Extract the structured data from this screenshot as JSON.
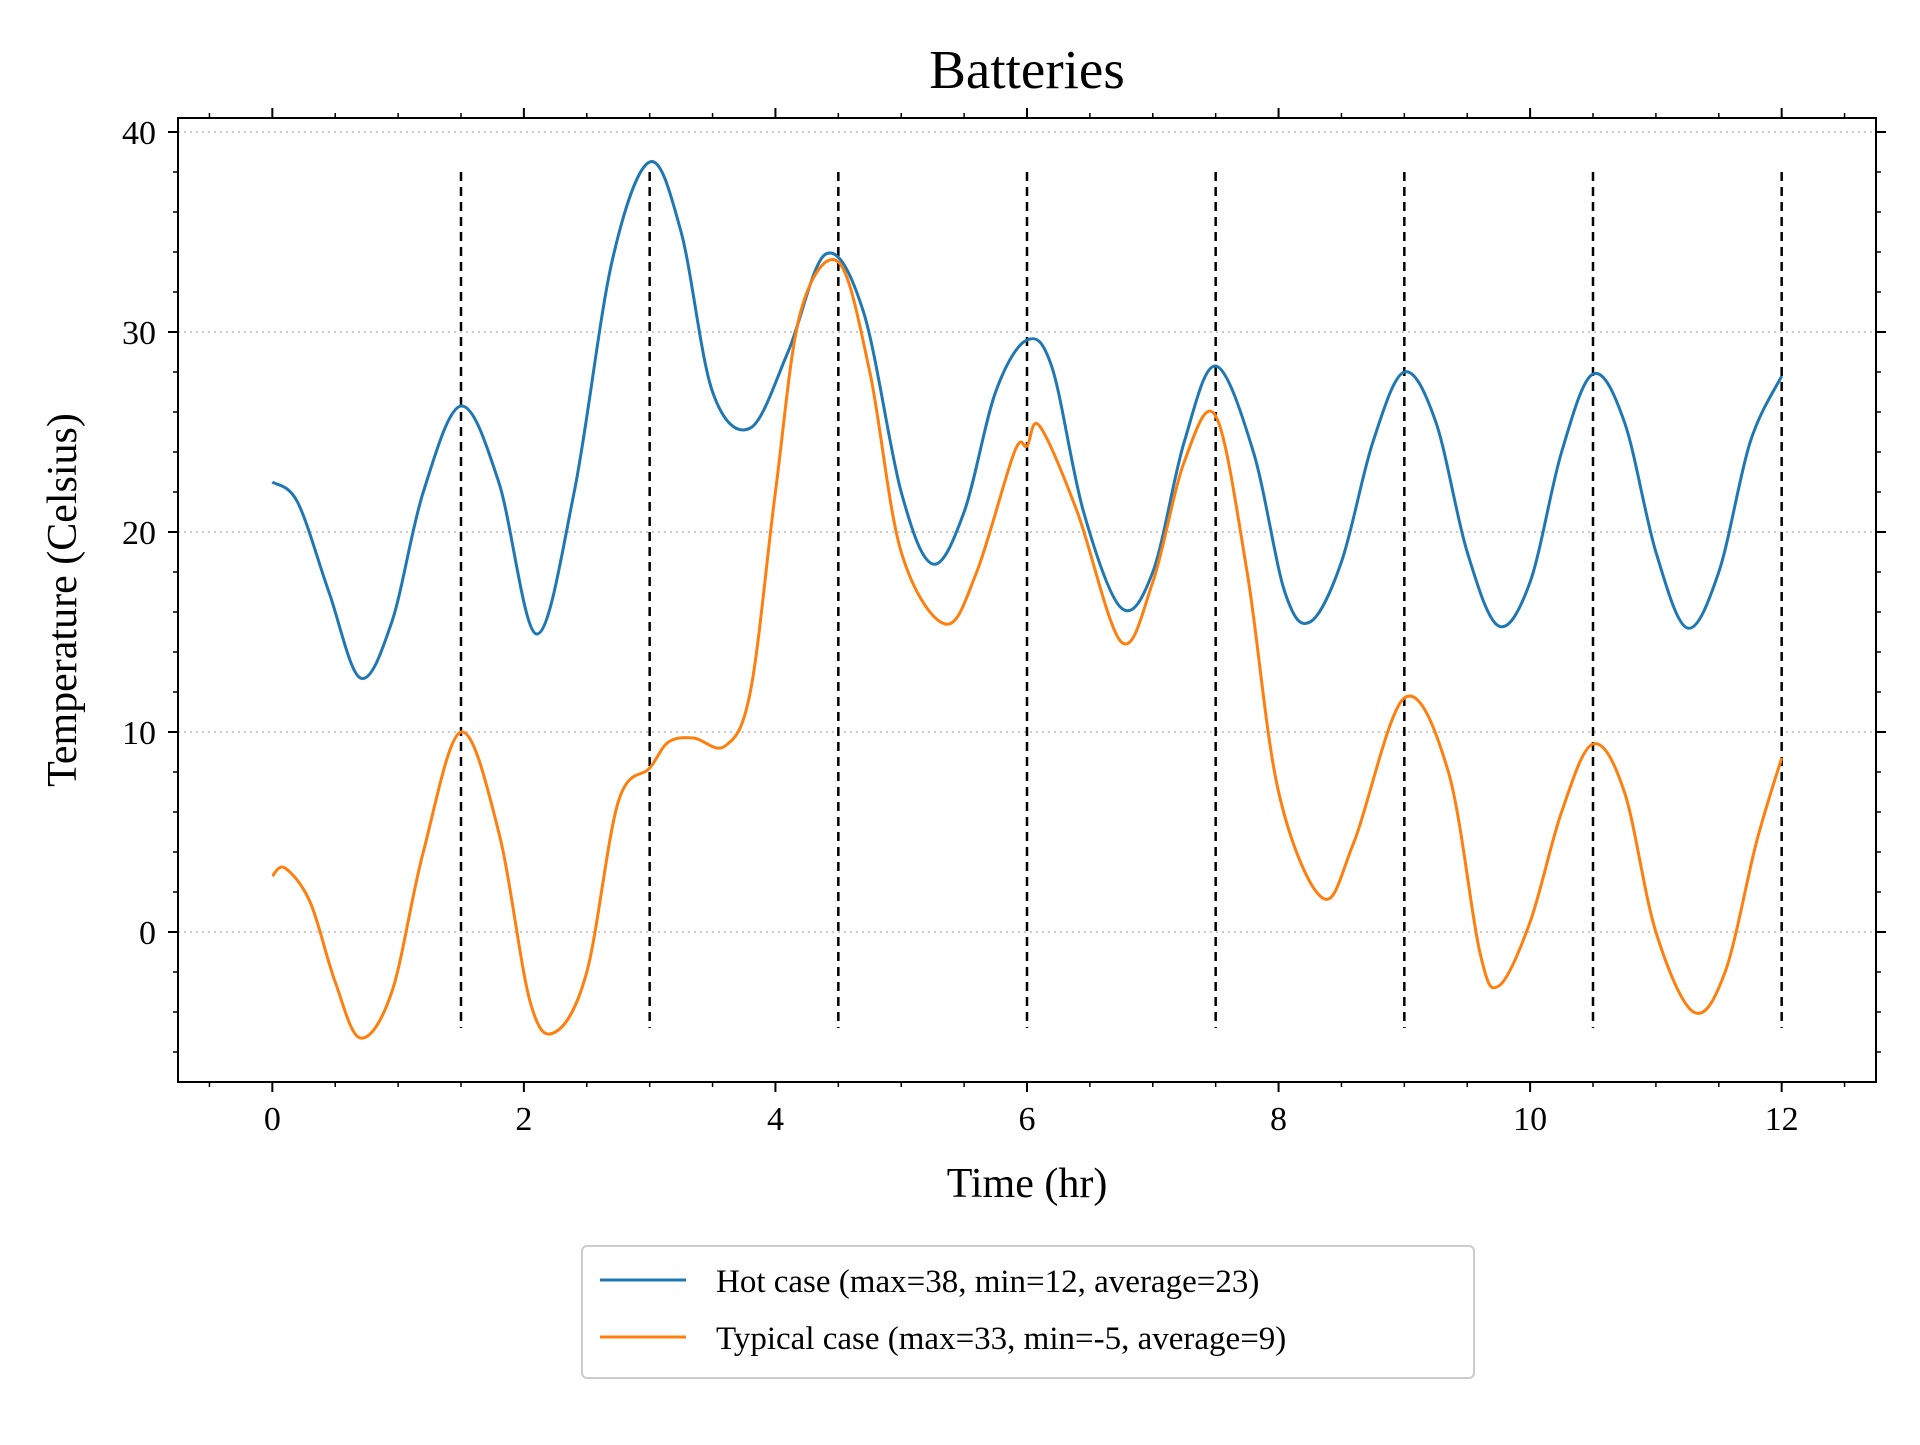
{
  "chart_data": {
    "type": "line",
    "title": "Batteries",
    "xlabel": "Time (hr)",
    "ylabel": "Temperature (Celsius)",
    "xlim": [
      -0.75,
      12.75
    ],
    "ylim": [
      -7.5,
      40.7
    ],
    "xticks": [
      0,
      2,
      4,
      6,
      8,
      10,
      12
    ],
    "xtick_labels": [
      "0",
      "2",
      "4",
      "6",
      "8",
      "10",
      "12"
    ],
    "yticks": [
      0,
      10,
      20,
      30,
      40
    ],
    "ytick_labels": [
      "0",
      "10",
      "20",
      "30",
      "40"
    ],
    "grid": {
      "axis": "y",
      "style": "dotted",
      "color": "#bbbbbb"
    },
    "legend": {
      "position": "below-center"
    },
    "vlines": {
      "x": [
        1.5,
        3.0,
        4.5,
        6.0,
        7.5,
        9.0,
        10.5,
        12.0
      ],
      "ymin": -4.8,
      "ymax": 38.0,
      "style": "dashed",
      "color": "#000000"
    },
    "series": [
      {
        "name": "Hot case (max=38, min=12, average=23)",
        "color": "#1f77b4",
        "x": [
          0,
          0.2,
          0.45,
          0.7,
          0.95,
          1.2,
          1.5,
          1.8,
          2.1,
          2.4,
          2.7,
          3.0,
          3.25,
          3.5,
          3.8,
          4.1,
          4.4,
          4.7,
          5.0,
          5.25,
          5.5,
          5.75,
          6.0,
          6.2,
          6.45,
          6.75,
          7.0,
          7.25,
          7.5,
          7.8,
          8.05,
          8.25,
          8.5,
          8.75,
          9.0,
          9.25,
          9.5,
          9.75,
          10.0,
          10.25,
          10.5,
          10.75,
          11.0,
          11.25,
          11.5,
          11.75,
          12.0
        ],
        "y": [
          22.5,
          21.5,
          17.0,
          12.7,
          15.5,
          22.0,
          26.3,
          22.5,
          14.9,
          22.0,
          33.5,
          38.5,
          35.0,
          27.0,
          25.2,
          29.0,
          33.9,
          31.0,
          22.0,
          18.4,
          21.0,
          27.0,
          29.6,
          28.2,
          21.0,
          16.2,
          18.0,
          24.5,
          28.3,
          24.0,
          17.0,
          15.5,
          18.5,
          24.5,
          28.0,
          25.5,
          19.0,
          15.3,
          17.5,
          24.0,
          27.9,
          25.5,
          19.0,
          15.2,
          18.0,
          24.5,
          27.8
        ]
      },
      {
        "name": "Typical case (max=33, min=-5, average=9)",
        "color": "#ff7f0e",
        "x": [
          0,
          0.1,
          0.3,
          0.5,
          0.7,
          0.95,
          1.2,
          1.5,
          1.8,
          2.05,
          2.25,
          2.5,
          2.75,
          3.0,
          3.15,
          3.35,
          3.6,
          3.8,
          4.0,
          4.2,
          4.5,
          4.75,
          5.0,
          5.35,
          5.6,
          5.9,
          6.0,
          6.1,
          6.4,
          6.75,
          7.0,
          7.25,
          7.5,
          7.75,
          8.0,
          8.35,
          8.6,
          9.0,
          9.35,
          9.6,
          9.75,
          10.0,
          10.25,
          10.5,
          10.75,
          11.0,
          11.3,
          11.55,
          11.8,
          12.0
        ],
        "y": [
          2.8,
          3.2,
          1.5,
          -2.5,
          -5.3,
          -3.0,
          4.0,
          10.0,
          5.0,
          -3.5,
          -5.0,
          -2.0,
          6.5,
          8.2,
          9.5,
          9.7,
          9.3,
          12.0,
          22.0,
          31.0,
          33.5,
          28.0,
          19.0,
          15.4,
          18.0,
          24.0,
          24.3,
          25.3,
          21.0,
          14.5,
          17.5,
          23.5,
          25.8,
          18.0,
          7.0,
          1.7,
          4.5,
          11.7,
          8.0,
          -1.0,
          -2.7,
          0.5,
          6.0,
          9.4,
          7.0,
          0.0,
          -4.0,
          -2.0,
          4.5,
          8.7
        ]
      }
    ]
  }
}
